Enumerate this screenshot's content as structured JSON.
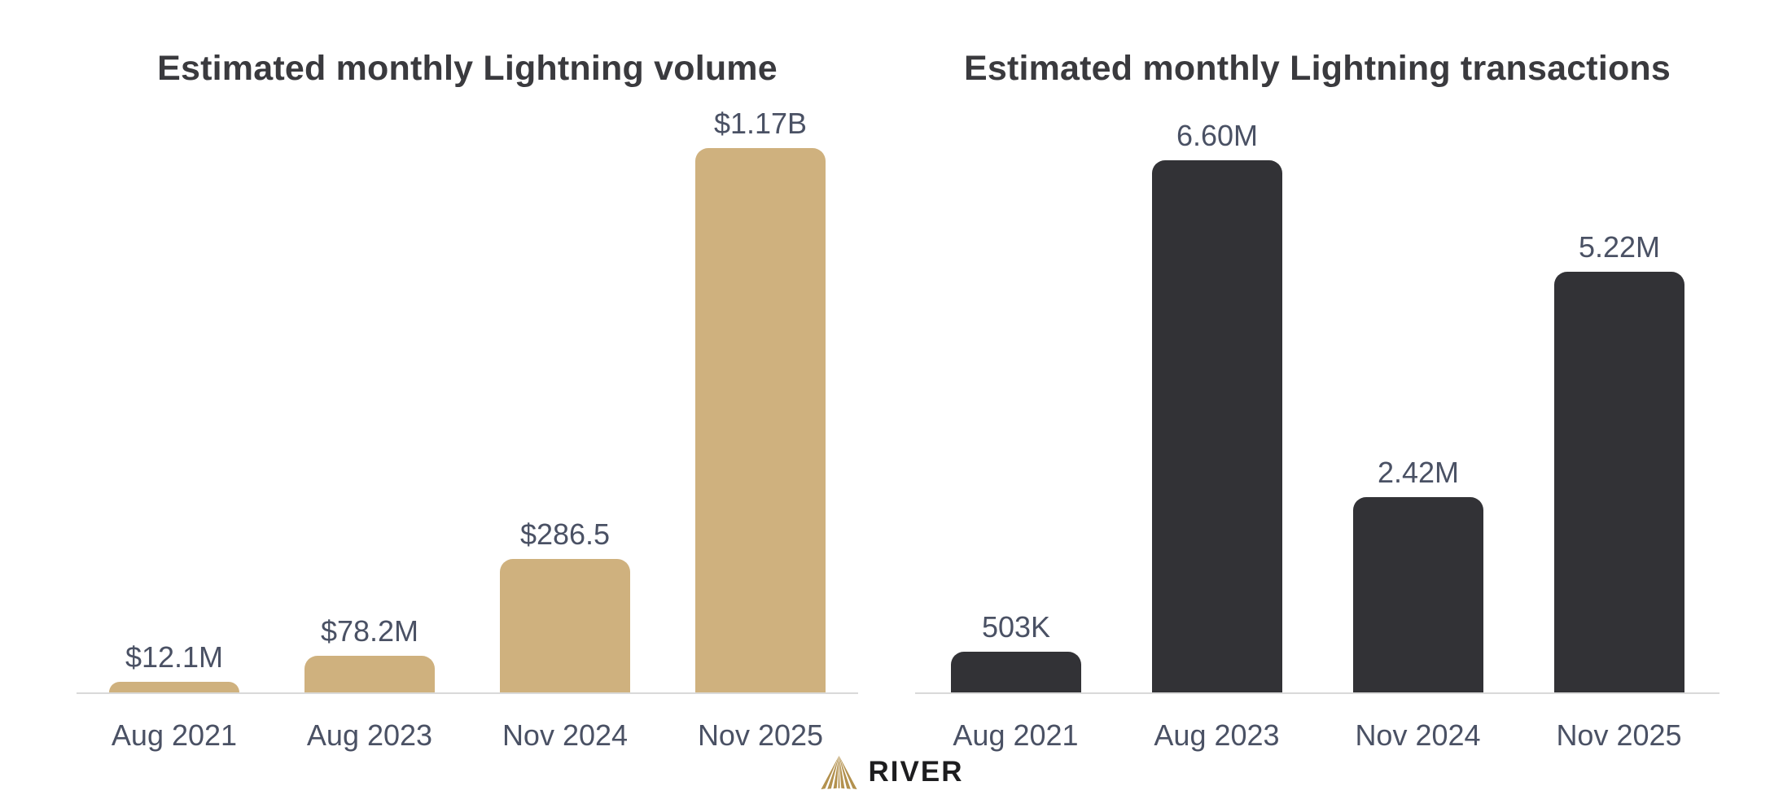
{
  "brand": {
    "name": "RIVER",
    "icon": "river-rays-mountain-icon",
    "icon_color": "#b3914e",
    "name_color": "#1d1d1f"
  },
  "colors": {
    "background": "#ffffff",
    "title_text": "#3a3a3e",
    "label_text": "#4a5164",
    "axis_line": "#d9d9d9",
    "volume_bar": "#cfb17e",
    "transactions_bar": "#323236"
  },
  "chart_data": [
    {
      "type": "bar",
      "title": "Estimated monthly Lightning volume",
      "categories": [
        "Aug 2021",
        "Aug 2023",
        "Nov 2024",
        "Nov 2025"
      ],
      "values": [
        12.1,
        78.2,
        286.5,
        1170
      ],
      "unit": "USD millions",
      "value_labels": [
        "$12.1M",
        "$78.2M",
        "$286.5",
        "$1.17B"
      ],
      "bar_color": "#cfb17e",
      "ylim": [
        0,
        1170
      ],
      "grid": false,
      "legend": false,
      "y_axis_shown": false
    },
    {
      "type": "bar",
      "title": "Estimated monthly Lightning transactions",
      "categories": [
        "Aug 2021",
        "Aug 2023",
        "Nov 2024",
        "Nov 2025"
      ],
      "values": [
        0.503,
        6.6,
        2.42,
        5.22
      ],
      "unit": "millions of transactions",
      "value_labels": [
        "503K",
        "6.60M",
        "2.42M",
        "5.22M"
      ],
      "bar_color": "#323236",
      "ylim": [
        0,
        6.6
      ],
      "grid": false,
      "legend": false,
      "y_axis_shown": false
    }
  ]
}
